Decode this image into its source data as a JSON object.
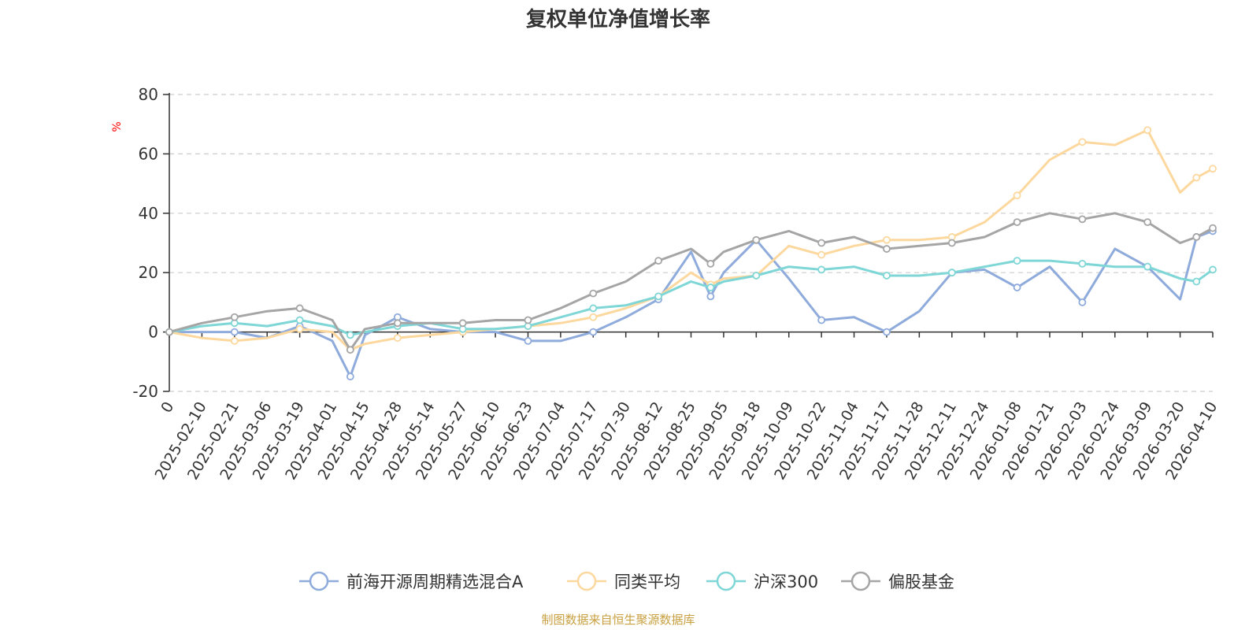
{
  "chart_data": {
    "type": "line",
    "title": "复权单位净值增长率",
    "ylabel": "%",
    "ylim": [
      -20,
      80
    ],
    "yticks": [
      80,
      60,
      40,
      20,
      0,
      -20
    ],
    "grid": true,
    "legend_position": "bottom-center",
    "source_note": "制图数据来自恒生聚源数据库",
    "x_tick_labels": [
      "0",
      "2025-02-10",
      "2025-02-21",
      "2025-03-06",
      "2025-03-19",
      "2025-04-01",
      "2025-04-15",
      "2025-04-28",
      "2025-05-14",
      "2025-05-27",
      "2025-06-10",
      "2025-06-23",
      "2025-07-04",
      "2025-07-17",
      "2025-07-30",
      "2025-08-12",
      "2025-08-25",
      "2025-09-05",
      "2025-09-18",
      "2025-10-09",
      "2025-10-22",
      "2025-11-04",
      "2025-11-17",
      "2025-11-28",
      "2025-12-11",
      "2025-12-24",
      "2026-01-08",
      "2026-01-21",
      "2026-02-03",
      "2026-02-24",
      "2026-03-09",
      "2026-03-20",
      "2026-04-10"
    ],
    "x": [
      "0",
      "2025-02-10",
      "2025-02-21",
      "2025-03-06",
      "2025-03-19",
      "2025-04-01",
      "2025-04-08",
      "2025-04-15",
      "2025-04-28",
      "2025-05-14",
      "2025-05-27",
      "2025-06-10",
      "2025-06-23",
      "2025-07-04",
      "2025-07-17",
      "2025-07-30",
      "2025-08-12",
      "2025-08-25",
      "2025-09-01",
      "2025-09-05",
      "2025-09-18",
      "2025-10-09",
      "2025-10-22",
      "2025-11-04",
      "2025-11-17",
      "2025-11-28",
      "2025-12-11",
      "2025-12-24",
      "2026-01-08",
      "2026-01-21",
      "2026-02-03",
      "2026-02-24",
      "2026-03-09",
      "2026-03-20",
      "2026-03-31",
      "2026-04-10"
    ],
    "series": [
      {
        "name": "前海开源周期精选混合A",
        "color": "#8eabdc",
        "values": [
          0,
          0,
          0,
          -2,
          2,
          -3,
          -15,
          -1,
          5,
          1,
          0,
          0,
          -3,
          -3,
          0,
          5,
          11,
          27,
          12,
          20,
          31,
          18,
          4,
          5,
          0,
          7,
          20,
          21,
          15,
          22,
          10,
          28,
          22,
          11,
          32,
          34
        ]
      },
      {
        "name": "同类平均",
        "color": "#fcd89e",
        "values": [
          0,
          -2,
          -3,
          -2,
          1,
          0,
          -6,
          -4,
          -2,
          -1,
          0,
          1,
          2,
          3,
          5,
          8,
          12,
          20,
          16,
          18,
          19,
          29,
          26,
          29,
          31,
          31,
          32,
          37,
          46,
          58,
          64,
          63,
          68,
          47,
          52,
          55
        ]
      },
      {
        "name": "沪深300",
        "color": "#7fd6d6",
        "values": [
          0,
          2,
          3,
          2,
          4,
          2,
          -1,
          0,
          2,
          3,
          1,
          1,
          2,
          5,
          8,
          9,
          12,
          17,
          15,
          17,
          19,
          22,
          21,
          22,
          19,
          19,
          20,
          22,
          24,
          24,
          23,
          22,
          22,
          18,
          17,
          21
        ]
      },
      {
        "name": "偏股基金",
        "color": "#a5a5a5",
        "values": [
          0,
          3,
          5,
          7,
          8,
          4,
          -6,
          1,
          3,
          3,
          3,
          4,
          4,
          8,
          13,
          17,
          24,
          28,
          23,
          27,
          31,
          34,
          30,
          32,
          28,
          29,
          30,
          32,
          37,
          40,
          38,
          40,
          37,
          30,
          32,
          35
        ]
      }
    ]
  }
}
